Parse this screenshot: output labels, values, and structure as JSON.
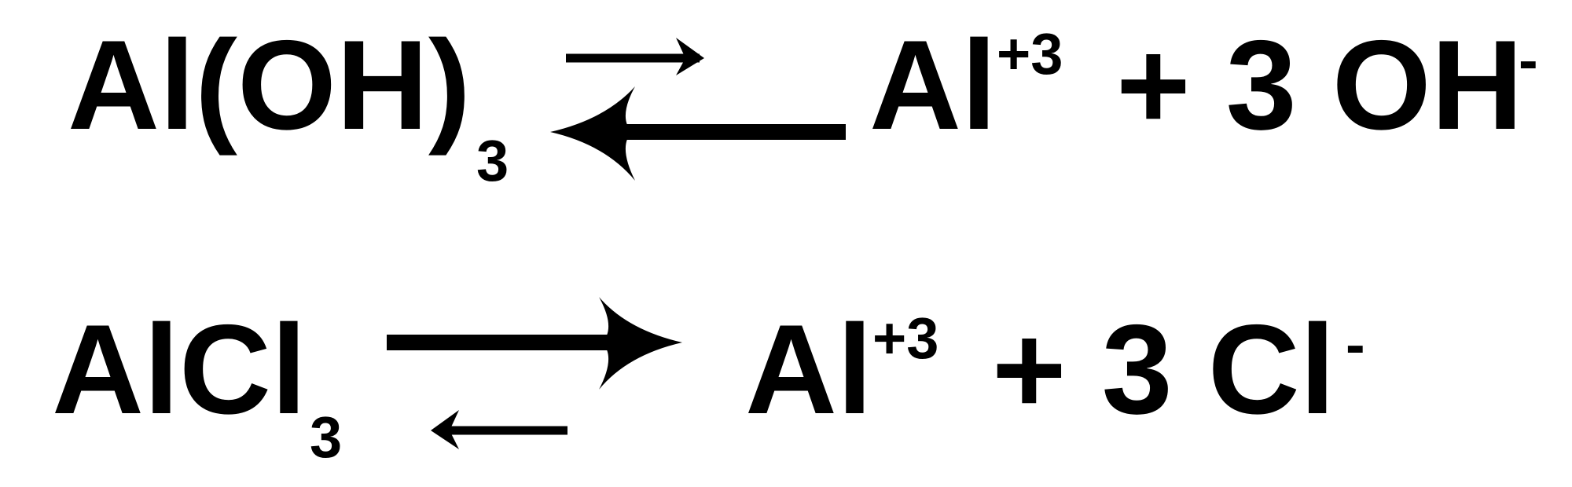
{
  "equations": [
    {
      "reactant": "Al(OH)",
      "reactant_subscript": "3",
      "arrow_type": "equilibrium-favoring-reactants",
      "product_ion": "Al",
      "product_ion_charge": "+3",
      "plus_and_counterion": "+ 3 OH",
      "counterion_charge": "-"
    },
    {
      "reactant": "AlCl",
      "reactant_subscript": "3",
      "arrow_type": "equilibrium-favoring-products",
      "product_ion": "Al",
      "product_ion_charge": "+3",
      "plus_and_counterion": "+ 3 Cl",
      "counterion_charge": "-"
    }
  ],
  "colors": {
    "ink": "#000000",
    "background": "#ffffff"
  }
}
